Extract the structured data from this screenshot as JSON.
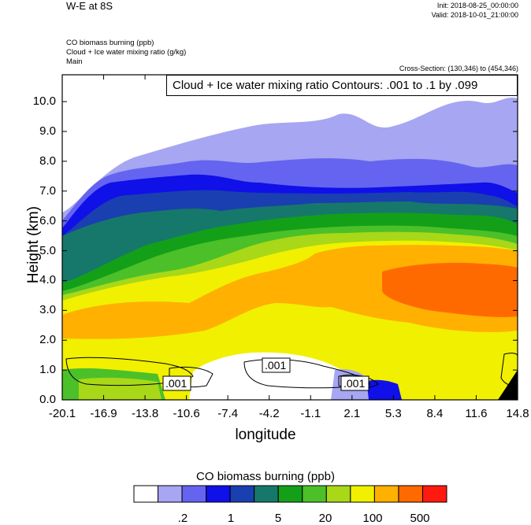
{
  "header": {
    "title": "W-E at 8S",
    "init": "Init: 2018-08-25_00:00:00",
    "valid": "Valid: 2018-10-01_21:00:00",
    "fields": [
      "CO biomass burning   (ppb)",
      "Cloud + Ice water mixing ratio   (g/kg)",
      "Main"
    ],
    "cross_section": "Cross-Section: (130,346) to (454,346)"
  },
  "contour_label": "Cloud + Ice water mixing ratio Contours: .001 to .1 by .099",
  "chart_data": {
    "type": "heatmap",
    "xlabel": "longitude",
    "ylabel": "Height (km)",
    "xlim": [
      -20.1,
      14.8
    ],
    "ylim": [
      0.0,
      10.9
    ],
    "x_ticks": [
      "-20.1",
      "-16.9",
      "-13.8",
      "-10.6",
      "-7.4",
      "-4.2",
      "-1.1",
      "2.1",
      "5.3",
      "8.4",
      "11.6",
      "14.8"
    ],
    "y_ticks": [
      "0.0",
      "1.0",
      "2.0",
      "3.0",
      "4.0",
      "5.0",
      "6.0",
      "7.0",
      "8.0",
      "9.0",
      "10.0"
    ],
    "colorbar": {
      "title": "CO biomass burning  (ppb)",
      "colors": [
        "#ffffff",
        "#a6a6f2",
        "#6464f0",
        "#1010e8",
        "#1a3fb0",
        "#16786a",
        "#13a018",
        "#4cc028",
        "#a8d818",
        "#f0f000",
        "#ffb000",
        "#ff6a00",
        "#ff1a10"
      ],
      "tick_labels": [
        ".2",
        "1",
        "5",
        "20",
        "100",
        "500"
      ]
    },
    "contour_labels": [
      ".001",
      ".001",
      ".001"
    ]
  }
}
